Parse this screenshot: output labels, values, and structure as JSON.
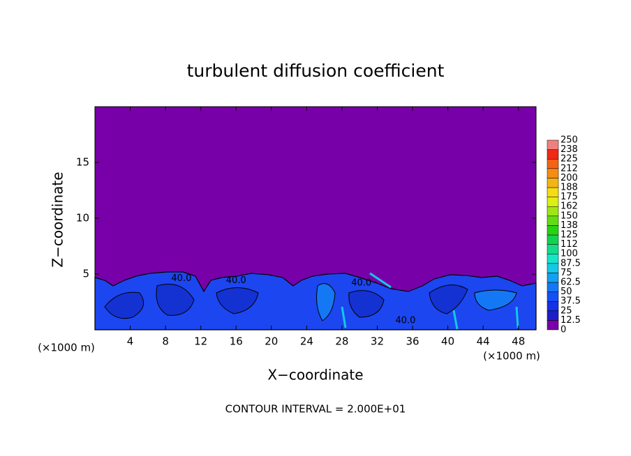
{
  "chart_data": {
    "type": "contour",
    "title": "turbulent diffusion coefficient",
    "x_label": "X−coordinate",
    "y_label": "Z−coordinate",
    "x_unit": "(×1000 m)",
    "footer": "CONTOUR INTERVAL = 2.000E+01",
    "xlim": [
      0,
      50
    ],
    "xticks": [
      4,
      8,
      12,
      16,
      20,
      24,
      28,
      32,
      36,
      40,
      44,
      48
    ],
    "ylim": [
      0,
      20
    ],
    "yticks": [
      5,
      10,
      15
    ],
    "contour_labels": [
      {
        "text": "40.0",
        "x": 9.8,
        "y": 4.6
      },
      {
        "text": "40.0",
        "x": 16.0,
        "y": 4.4
      },
      {
        "text": "40.0",
        "x": 30.2,
        "y": 4.2
      },
      {
        "text": "40.0",
        "x": 35.2,
        "y": 0.8
      }
    ],
    "colorbar": {
      "levels": [
        0,
        12.5,
        25,
        37.5,
        50,
        62.5,
        75,
        87.5,
        100,
        {
          "value": 112.5,
          "label": "112"
        },
        125,
        {
          "value": 137.5,
          "label": "138"
        },
        150,
        {
          "value": 162.5,
          "label": "162"
        },
        175,
        {
          "value": 187.5,
          "label": "188"
        },
        200,
        {
          "value": 212.5,
          "label": "212"
        },
        225,
        {
          "value": 237.5,
          "label": "238"
        },
        250
      ],
      "colors": [
        "#7800a8",
        "#1e1ec8",
        "#1432e6",
        "#1450f5",
        "#1478f5",
        "#14a0f0",
        "#14c8e6",
        "#14e6c8",
        "#14dc8c",
        "#14d250",
        "#28d214",
        "#64dc14",
        "#a0e614",
        "#dcf014",
        "#f5dc14",
        "#f5b414",
        "#f58c14",
        "#f56414",
        "#f02814",
        "#f08080"
      ]
    }
  }
}
